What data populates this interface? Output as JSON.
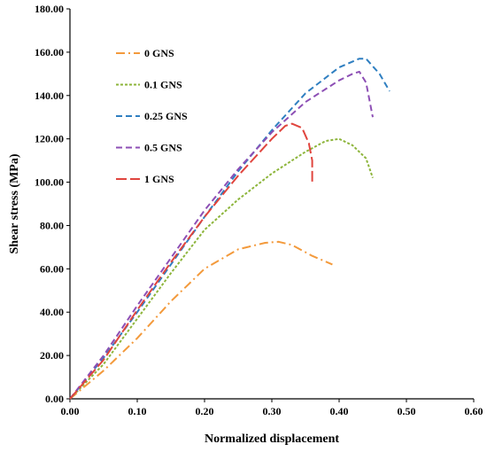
{
  "chart_data": {
    "type": "line",
    "xlabel": "Normalized displacement",
    "ylabel": "Shear stress (MPa)",
    "xlim": [
      0,
      0.6
    ],
    "ylim": [
      0,
      180
    ],
    "x_ticks": [
      "0.00",
      "0.10",
      "0.20",
      "0.30",
      "0.40",
      "0.50",
      "0.60"
    ],
    "y_ticks": [
      "0.00",
      "20.00",
      "40.00",
      "60.00",
      "80.00",
      "100.00",
      "120.00",
      "140.00",
      "160.00",
      "180.00"
    ],
    "grid": false,
    "legend_position": "top-left",
    "series": [
      {
        "name": "0 GNS",
        "color": "#F39A3C",
        "dash": "dash-dot",
        "points": [
          [
            0,
            0
          ],
          [
            0.05,
            13
          ],
          [
            0.1,
            28
          ],
          [
            0.15,
            45
          ],
          [
            0.2,
            60
          ],
          [
            0.25,
            69
          ],
          [
            0.29,
            72
          ],
          [
            0.31,
            72.5
          ],
          [
            0.33,
            71
          ],
          [
            0.36,
            66
          ],
          [
            0.39,
            62
          ]
        ]
      },
      {
        "name": "0.1 GNS",
        "color": "#8DB53B",
        "dash": "dotted",
        "points": [
          [
            0,
            0
          ],
          [
            0.05,
            16
          ],
          [
            0.1,
            37
          ],
          [
            0.15,
            58
          ],
          [
            0.2,
            78
          ],
          [
            0.25,
            92
          ],
          [
            0.3,
            104
          ],
          [
            0.35,
            114
          ],
          [
            0.38,
            119
          ],
          [
            0.4,
            120
          ],
          [
            0.42,
            117
          ],
          [
            0.44,
            111
          ],
          [
            0.45,
            102
          ]
        ]
      },
      {
        "name": "0.25 GNS",
        "color": "#2F7FC1",
        "dash": "dashed",
        "points": [
          [
            0,
            0
          ],
          [
            0.05,
            19
          ],
          [
            0.1,
            40
          ],
          [
            0.15,
            62
          ],
          [
            0.2,
            84
          ],
          [
            0.25,
            105
          ],
          [
            0.3,
            124
          ],
          [
            0.35,
            141
          ],
          [
            0.4,
            153
          ],
          [
            0.43,
            157
          ],
          [
            0.44,
            157
          ],
          [
            0.46,
            150
          ],
          [
            0.475,
            142
          ]
        ]
      },
      {
        "name": "0.5 GNS",
        "color": "#8D4FB5",
        "dash": "dashed",
        "points": [
          [
            0,
            0
          ],
          [
            0.05,
            20
          ],
          [
            0.1,
            43
          ],
          [
            0.15,
            65
          ],
          [
            0.2,
            87
          ],
          [
            0.25,
            106
          ],
          [
            0.3,
            123
          ],
          [
            0.35,
            137
          ],
          [
            0.4,
            147
          ],
          [
            0.42,
            150
          ],
          [
            0.43,
            151
          ],
          [
            0.44,
            146
          ],
          [
            0.45,
            130
          ]
        ]
      },
      {
        "name": "1 GNS",
        "color": "#E0453E",
        "dash": "long-dash",
        "points": [
          [
            0,
            0
          ],
          [
            0.05,
            18
          ],
          [
            0.1,
            41
          ],
          [
            0.15,
            63
          ],
          [
            0.2,
            84
          ],
          [
            0.25,
            103
          ],
          [
            0.3,
            120
          ],
          [
            0.32,
            126
          ],
          [
            0.33,
            127
          ],
          [
            0.345,
            125
          ],
          [
            0.355,
            118
          ],
          [
            0.36,
            110
          ],
          [
            0.36,
            100
          ]
        ]
      }
    ]
  }
}
